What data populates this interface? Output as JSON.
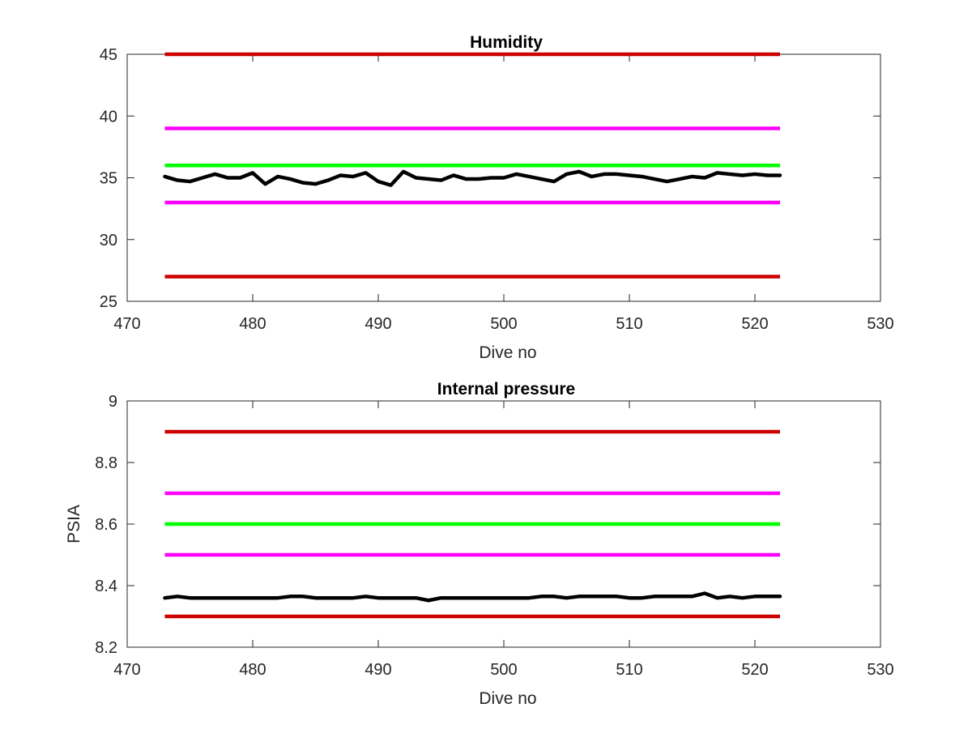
{
  "chart_data": [
    {
      "type": "line",
      "title": "Humidity",
      "xlabel": "Dive no",
      "ylabel": "",
      "xlim": [
        470,
        530
      ],
      "ylim": [
        25,
        45
      ],
      "xticks": [
        470,
        480,
        490,
        500,
        510,
        520,
        530
      ],
      "yticks": [
        25,
        30,
        35,
        40,
        45
      ],
      "x": [
        473,
        474,
        475,
        476,
        477,
        478,
        479,
        480,
        481,
        482,
        483,
        484,
        485,
        486,
        487,
        488,
        489,
        490,
        491,
        492,
        493,
        494,
        495,
        496,
        497,
        498,
        499,
        500,
        501,
        502,
        503,
        504,
        505,
        506,
        507,
        508,
        509,
        510,
        511,
        512,
        513,
        514,
        515,
        516,
        517,
        518,
        519,
        520,
        521,
        522
      ],
      "series": [
        {
          "color": "#000000",
          "values": [
            35.1,
            34.8,
            34.7,
            35.0,
            35.3,
            35.0,
            35.0,
            35.4,
            34.5,
            35.1,
            34.9,
            34.6,
            34.5,
            34.8,
            35.2,
            35.1,
            35.4,
            34.7,
            34.4,
            35.5,
            35.0,
            34.9,
            34.8,
            35.2,
            34.9,
            34.9,
            35.0,
            35.0,
            35.3,
            35.1,
            34.9,
            34.7,
            35.3,
            35.5,
            35.1,
            35.3,
            35.3,
            35.2,
            35.1,
            34.9,
            34.7,
            34.9,
            35.1,
            35.0,
            35.4,
            35.3,
            35.2,
            35.3,
            35.2,
            35.2
          ]
        }
      ],
      "reference_lines": [
        {
          "y": 45,
          "x_from": 473,
          "x_to": 522,
          "color": "#cc0000"
        },
        {
          "y": 39,
          "x_from": 473,
          "x_to": 522,
          "color": "#ff00ff"
        },
        {
          "y": 36,
          "x_from": 473,
          "x_to": 522,
          "color": "#00ff00"
        },
        {
          "y": 33,
          "x_from": 473,
          "x_to": 522,
          "color": "#ff00ff"
        },
        {
          "y": 27,
          "x_from": 473,
          "x_to": 522,
          "color": "#cc0000"
        }
      ],
      "grid": false
    },
    {
      "type": "line",
      "title": "Internal pressure",
      "xlabel": "Dive no",
      "ylabel": "PSIA",
      "xlim": [
        470,
        530
      ],
      "ylim": [
        8.2,
        9
      ],
      "xticks": [
        470,
        480,
        490,
        500,
        510,
        520,
        530
      ],
      "yticks": [
        8.2,
        8.4,
        8.6,
        8.8,
        9
      ],
      "x": [
        473,
        474,
        475,
        476,
        477,
        478,
        479,
        480,
        481,
        482,
        483,
        484,
        485,
        486,
        487,
        488,
        489,
        490,
        491,
        492,
        493,
        494,
        495,
        496,
        497,
        498,
        499,
        500,
        501,
        502,
        503,
        504,
        505,
        506,
        507,
        508,
        509,
        510,
        511,
        512,
        513,
        514,
        515,
        516,
        517,
        518,
        519,
        520,
        521,
        522
      ],
      "series": [
        {
          "color": "#000000",
          "values": [
            8.36,
            8.365,
            8.36,
            8.36,
            8.36,
            8.36,
            8.36,
            8.36,
            8.36,
            8.36,
            8.365,
            8.365,
            8.36,
            8.36,
            8.36,
            8.36,
            8.365,
            8.36,
            8.36,
            8.36,
            8.36,
            8.352,
            8.36,
            8.36,
            8.36,
            8.36,
            8.36,
            8.36,
            8.36,
            8.36,
            8.365,
            8.365,
            8.36,
            8.365,
            8.365,
            8.365,
            8.365,
            8.36,
            8.36,
            8.365,
            8.365,
            8.365,
            8.365,
            8.375,
            8.36,
            8.365,
            8.36,
            8.365,
            8.365,
            8.365
          ]
        }
      ],
      "reference_lines": [
        {
          "y": 8.9,
          "x_from": 473,
          "x_to": 522,
          "color": "#cc0000"
        },
        {
          "y": 8.7,
          "x_from": 473,
          "x_to": 522,
          "color": "#ff00ff"
        },
        {
          "y": 8.6,
          "x_from": 473,
          "x_to": 522,
          "color": "#00ff00"
        },
        {
          "y": 8.5,
          "x_from": 473,
          "x_to": 522,
          "color": "#ff00ff"
        },
        {
          "y": 8.3,
          "x_from": 473,
          "x_to": 522,
          "color": "#cc0000"
        }
      ],
      "grid": false
    }
  ]
}
